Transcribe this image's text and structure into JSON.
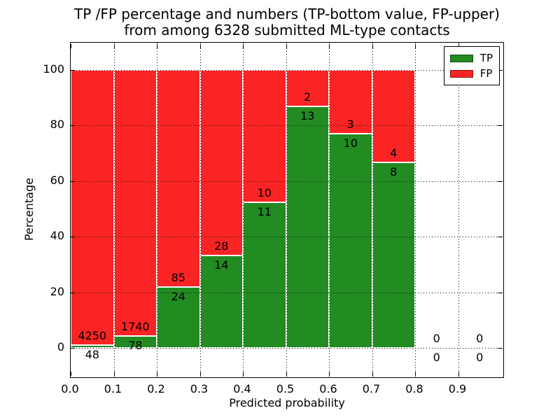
{
  "title": {
    "line1": "TP /FP percentage and numbers (TP-bottom value, FP-upper)",
    "line2": "from among 6328 submitted ML-type contacts"
  },
  "axes": {
    "xlabel": "Predicted probability",
    "ylabel": "Percentage",
    "x_tick_labels": [
      "0.0",
      "0.1",
      "0.2",
      "0.3",
      "0.4",
      "0.5",
      "0.6",
      "0.7",
      "0.8",
      "0.9"
    ],
    "x_tick_values": [
      0.0,
      0.1,
      0.2,
      0.3,
      0.4,
      0.5,
      0.6,
      0.7,
      0.8,
      0.9
    ],
    "y_tick_labels": [
      "0",
      "20",
      "40",
      "60",
      "80",
      "100"
    ],
    "y_tick_values": [
      0,
      20,
      40,
      60,
      80,
      100
    ]
  },
  "legend": {
    "items": [
      {
        "label": "TP",
        "color": "#228b22"
      },
      {
        "label": "FP",
        "color": "#fb2424"
      }
    ]
  },
  "colors": {
    "tp": "#228b22",
    "fp": "#fb2424",
    "grid": "#000000",
    "background": "#ffffff"
  },
  "chart_data": {
    "type": "bar",
    "stacked": true,
    "normalized_to_100_percent": true,
    "title": "TP /FP percentage and numbers (TP-bottom value, FP-upper)\nfrom among 6328 submitted ML-type contacts",
    "xlabel": "Predicted probability",
    "ylabel": "Percentage",
    "xlim": [
      0.0,
      1.0
    ],
    "ylim": [
      -11,
      110
    ],
    "grid": "dotted",
    "legend_position": "upper right",
    "total_contacts": 6328,
    "categories": [
      "0.0-0.1",
      "0.1-0.2",
      "0.2-0.3",
      "0.3-0.4",
      "0.4-0.5",
      "0.5-0.6",
      "0.6-0.7",
      "0.7-0.8",
      "0.8-0.9",
      "0.9-1.0"
    ],
    "series": [
      {
        "name": "TP",
        "color": "#228b22",
        "counts": [
          48,
          78,
          24,
          14,
          11,
          13,
          10,
          8,
          0,
          0
        ]
      },
      {
        "name": "FP",
        "color": "#fb2424",
        "counts": [
          4250,
          1740,
          85,
          28,
          10,
          2,
          3,
          4,
          0,
          0
        ]
      }
    ],
    "bins": [
      {
        "range": [
          0.0,
          0.1
        ],
        "tp": 48,
        "fp": 4250,
        "tp_pct": 1.1
      },
      {
        "range": [
          0.1,
          0.2
        ],
        "tp": 78,
        "fp": 1740,
        "tp_pct": 4.3
      },
      {
        "range": [
          0.2,
          0.3
        ],
        "tp": 24,
        "fp": 85,
        "tp_pct": 22.0
      },
      {
        "range": [
          0.3,
          0.4
        ],
        "tp": 14,
        "fp": 28,
        "tp_pct": 33.3
      },
      {
        "range": [
          0.4,
          0.5
        ],
        "tp": 11,
        "fp": 10,
        "tp_pct": 52.4
      },
      {
        "range": [
          0.5,
          0.6
        ],
        "tp": 13,
        "fp": 2,
        "tp_pct": 86.7
      },
      {
        "range": [
          0.6,
          0.7
        ],
        "tp": 10,
        "fp": 3,
        "tp_pct": 76.9
      },
      {
        "range": [
          0.7,
          0.8
        ],
        "tp": 8,
        "fp": 4,
        "tp_pct": 66.7
      },
      {
        "range": [
          0.8,
          0.9
        ],
        "tp": 0,
        "fp": 0,
        "tp_pct": 0
      },
      {
        "range": [
          0.9,
          1.0
        ],
        "tp": 0,
        "fp": 0,
        "tp_pct": 0
      }
    ]
  }
}
